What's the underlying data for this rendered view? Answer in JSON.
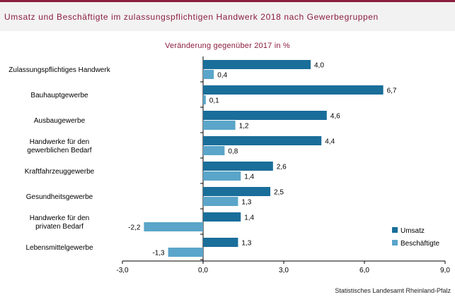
{
  "title": "Umsatz und Beschäftigte im zulassungspflichtigen Handwerk 2018 nach Gewerbegruppen",
  "source": "Statistisches Landesamt Rheinland-Pfalz",
  "colors": {
    "accent": "#8b1e3f",
    "umsatz": "#1a6e9a",
    "beschaeftigte": "#5aa5c9"
  },
  "chart_data": {
    "type": "bar",
    "orientation": "horizontal",
    "title": "Veränderung gegenüber 2017 in %",
    "categories": [
      [
        "Zulassungspflichtiges Handwerk"
      ],
      [
        "Bauhauptgewerbe"
      ],
      [
        "Ausbaugewerbe"
      ],
      [
        "Handwerke für den",
        "gewerblichen Bedarf"
      ],
      [
        "Kraftfahrzeuggewerbe"
      ],
      [
        "Gesundheitsgewerbe"
      ],
      [
        "Handwerke für den",
        "privaten Bedarf"
      ],
      [
        "Lebensmittelgewerbe"
      ]
    ],
    "series": [
      {
        "name": "Umsatz",
        "color": "#1a6e9a",
        "values": [
          4.0,
          6.7,
          4.6,
          4.4,
          2.6,
          2.5,
          1.4,
          1.3
        ],
        "labels": [
          "4,0",
          "6,7",
          "4,6",
          "4,4",
          "2,6",
          "2,5",
          "1,4",
          "1,3"
        ]
      },
      {
        "name": "Beschäftigte",
        "color": "#5aa5c9",
        "values": [
          0.4,
          0.1,
          1.2,
          0.8,
          1.4,
          1.3,
          -2.2,
          -1.3
        ],
        "labels": [
          "0,4",
          "0,1",
          "1,2",
          "0,8",
          "1,4",
          "1,3",
          "-2,2",
          "-1,3"
        ]
      }
    ],
    "xlim": [
      -3.0,
      9.0
    ],
    "xticks": [
      -3.0,
      0.0,
      3.0,
      6.0,
      9.0
    ],
    "xtick_labels": [
      "-3,0",
      "0,0",
      "3,0",
      "6,0",
      "9,0"
    ],
    "legend": "bottom-right",
    "grid": false
  }
}
